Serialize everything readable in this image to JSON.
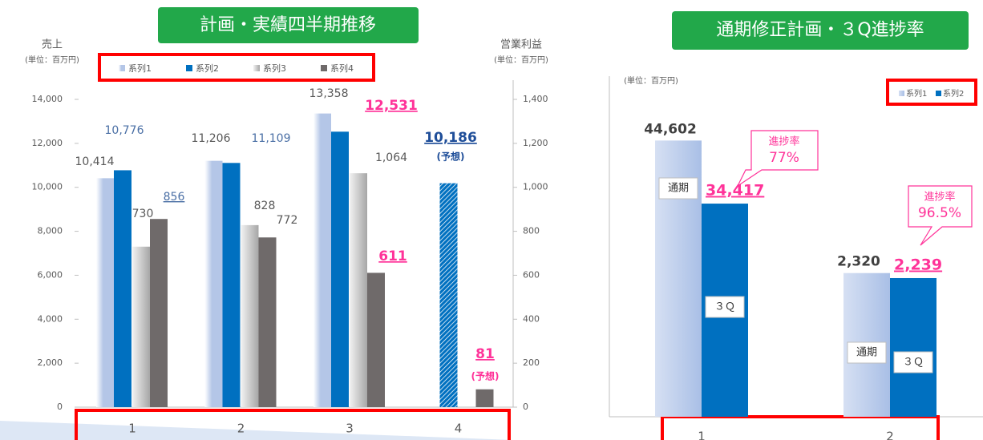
{
  "chart_data": [
    {
      "type": "bar",
      "title": "計画・実績四半期推移",
      "y_axis_label": "売上",
      "y_axis_unit": "(単位：百万円)",
      "y2_axis_label": "営業利益",
      "y2_axis_unit": "(単位：百万円)",
      "categories": [
        "1",
        "2",
        "3",
        "4"
      ],
      "ylim": [
        0,
        14000
      ],
      "yticks": [
        0,
        {
          "value": 2000,
          "label": "2,000"
        },
        {
          "value": 4000,
          "label": "4,000"
        },
        {
          "value": 6000,
          "label": "6,000"
        },
        {
          "value": 8000,
          "label": "8,000"
        },
        {
          "value": 10000,
          "label": "10,000"
        },
        {
          "value": 12000,
          "label": "12,000"
        },
        {
          "value": 14000,
          "label": "14,000"
        }
      ],
      "y2lim": [
        0,
        1400
      ],
      "y2ticks": [
        0,
        200,
        400,
        600,
        800,
        {
          "value": 1000,
          "label": "1,000"
        },
        {
          "value": 1200,
          "label": "1,200"
        },
        {
          "value": 1400,
          "label": "1,400"
        }
      ],
      "legend": "top",
      "series": [
        {
          "name": "系列1",
          "color": "#b4c6e7",
          "values": [
            10414,
            11206,
            13358,
            null
          ],
          "value_labels": [
            "10,414",
            "11,206",
            "13,358",
            null
          ]
        },
        {
          "name": "系列2",
          "color": "#0070c0",
          "values": [
            10776,
            11109,
            12531,
            10186
          ],
          "value_labels": [
            "10,776",
            "11,109",
            "12,531",
            "10,186"
          ],
          "hatched": [
            false,
            false,
            false,
            true
          ]
        },
        {
          "name": "系列3",
          "color": "#bfbfbf",
          "axis": "y2",
          "values": [
            730,
            828,
            1064,
            null
          ],
          "value_labels": [
            null,
            null,
            "1,064",
            null
          ]
        },
        {
          "name": "系列4",
          "color": "#6f6a6a",
          "axis": "y2",
          "values": [
            856,
            772,
            611,
            81
          ]
        }
      ],
      "annotations": [
        "(予想)",
        "(予想)"
      ]
    },
    {
      "type": "bar",
      "title": "通期修正計画・３Q進捗率",
      "y_axis_unit": "(単位：百万円)",
      "categories": [
        "1",
        "2"
      ],
      "ylim": [
        0,
        55000
      ],
      "y2lim": [
        0,
        5500
      ],
      "category_axes": [
        "y",
        "y2"
      ],
      "legend": "top-right",
      "series": [
        {
          "name": "系列1",
          "color": "#a9bfe6",
          "values": [
            44602,
            2320
          ],
          "value_labels": [
            "44,602",
            "2,320"
          ],
          "inner_label": "通期"
        },
        {
          "name": "系列2",
          "color": "#0070c0",
          "values": [
            34417,
            2239
          ],
          "value_labels": [
            "34,417",
            "2,239"
          ],
          "inner_label": "３Ｑ"
        }
      ],
      "annotations": [
        {
          "label": "進捗率",
          "value": "77%"
        },
        {
          "label": "進捗率",
          "value": "96.5%"
        }
      ]
    }
  ]
}
